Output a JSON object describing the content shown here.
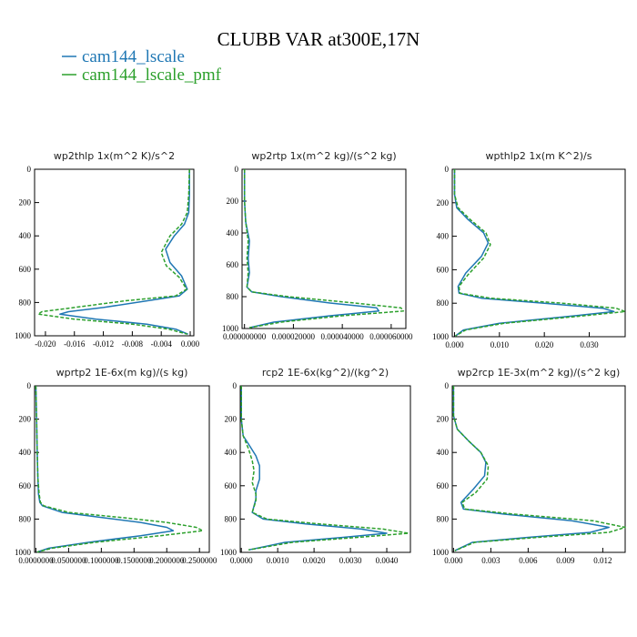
{
  "figure": {
    "title": "CLUBB VAR at300E,17N",
    "legend": [
      {
        "label": "cam144_lscale",
        "color": "#1f77b4",
        "style": "solid"
      },
      {
        "label": "cam144_lscale_pmf",
        "color": "#2ca02c",
        "style": "dashed"
      }
    ]
  },
  "chart_data": [
    {
      "type": "line",
      "title": "wp2thlp  1x(m^2 K)/s^2",
      "xlim": [
        -0.0215,
        0.0005
      ],
      "ylim": [
        1000,
        0
      ],
      "xticks": [
        -0.02,
        -0.016,
        -0.012,
        -0.008,
        -0.004,
        0.0
      ],
      "xtick_labels": [
        "-0.020",
        "-0.016",
        "-0.012",
        "-0.008",
        "-0.004",
        "0.000"
      ],
      "yticks": [
        0,
        200,
        400,
        600,
        800,
        1000
      ],
      "ytick_labels": [
        "0",
        "200",
        "400",
        "600",
        "800",
        "1000"
      ],
      "series": [
        {
          "name": "cam144_lscale",
          "color": "#1f77b4",
          "x": [
            -0.0001,
            -0.0001,
            -0.0002,
            -0.0008,
            -0.0022,
            -0.0034,
            -0.0028,
            -0.0012,
            -0.0004,
            -0.0015,
            -0.006,
            -0.012,
            -0.0168,
            -0.018,
            -0.013,
            -0.006,
            -0.002,
            -0.0003
          ],
          "y": [
            0,
            150,
            260,
            330,
            400,
            480,
            560,
            640,
            720,
            760,
            790,
            830,
            855,
            870,
            900,
            930,
            960,
            990
          ]
        },
        {
          "name": "cam144_lscale_pmf",
          "color": "#2ca02c",
          "x": [
            -0.0001,
            -0.0002,
            -0.0004,
            -0.0012,
            -0.0028,
            -0.004,
            -0.0033,
            -0.0015,
            -0.0005,
            -0.002,
            -0.009,
            -0.016,
            -0.0205,
            -0.021,
            -0.016,
            -0.008,
            -0.003,
            -0.0004
          ],
          "y": [
            0,
            150,
            260,
            330,
            400,
            500,
            580,
            650,
            720,
            760,
            790,
            830,
            855,
            870,
            900,
            930,
            960,
            990
          ]
        }
      ]
    },
    {
      "type": "line",
      "title": "wp2rtp  1x(m^2 kg)/(s^2 kg)",
      "xlim": [
        -1e-06,
        6.6e-05
      ],
      "ylim": [
        1000,
        0
      ],
      "xticks": [
        0,
        2e-05,
        4e-05,
        6e-05
      ],
      "xtick_labels": [
        "0.000000000",
        "0.000020000",
        "0.000040000",
        "0.000060000"
      ],
      "yticks": [
        0,
        200,
        400,
        600,
        800,
        1000
      ],
      "ytick_labels": [
        "0",
        "200",
        "400",
        "600",
        "800",
        "1000"
      ],
      "series": [
        {
          "name": "cam144_lscale",
          "color": "#1f77b4",
          "x": [
            0,
            0,
            5e-07,
            2e-06,
            1.5e-06,
            2e-06,
            1e-06,
            3e-06,
            1.5e-05,
            3.5e-05,
            5.4e-05,
            5.5e-05,
            3.5e-05,
            1.2e-05,
            2e-06
          ],
          "y": [
            0,
            200,
            330,
            450,
            560,
            650,
            740,
            770,
            800,
            840,
            870,
            890,
            920,
            960,
            995
          ]
        },
        {
          "name": "cam144_lscale_pmf",
          "color": "#2ca02c",
          "x": [
            0,
            0,
            5e-07,
            1.5e-06,
            1e-06,
            1.5e-06,
            1e-06,
            3e-06,
            1.8e-05,
            4.5e-05,
            6.4e-05,
            6.5e-05,
            4e-05,
            1.5e-05,
            2e-06
          ],
          "y": [
            0,
            200,
            330,
            450,
            560,
            650,
            740,
            770,
            800,
            840,
            870,
            890,
            920,
            960,
            995
          ]
        }
      ]
    },
    {
      "type": "line",
      "title": "wpthlp2  1x(m K^2)/s",
      "xlim": [
        -0.0005,
        0.038
      ],
      "ylim": [
        1000,
        0
      ],
      "xticks": [
        0,
        0.01,
        0.02,
        0.03
      ],
      "xtick_labels": [
        "0.000",
        "0.010",
        "0.020",
        "0.030"
      ],
      "yticks": [
        0,
        200,
        400,
        600,
        800,
        1000
      ],
      "ytick_labels": [
        "0",
        "200",
        "400",
        "600",
        "800",
        "1000"
      ],
      "series": [
        {
          "name": "cam144_lscale",
          "color": "#1f77b4",
          "x": [
            0,
            0,
            0.0005,
            0.003,
            0.0065,
            0.0075,
            0.006,
            0.0025,
            0.0008,
            0.001,
            0.006,
            0.02,
            0.033,
            0.0355,
            0.025,
            0.01,
            0.002,
            0.0002
          ],
          "y": [
            0,
            150,
            230,
            300,
            380,
            440,
            520,
            620,
            700,
            740,
            770,
            800,
            830,
            850,
            880,
            920,
            960,
            995
          ]
        },
        {
          "name": "cam144_lscale_pmf",
          "color": "#2ca02c",
          "x": [
            0,
            0,
            0.0008,
            0.0035,
            0.007,
            0.008,
            0.0065,
            0.003,
            0.001,
            0.0012,
            0.008,
            0.024,
            0.036,
            0.038,
            0.027,
            0.011,
            0.0025,
            0.0002
          ],
          "y": [
            0,
            150,
            230,
            300,
            380,
            450,
            530,
            630,
            700,
            740,
            770,
            800,
            830,
            850,
            880,
            920,
            960,
            995
          ]
        }
      ]
    },
    {
      "type": "line",
      "title": "wprtp2  1E-6x(m kg)/(s kg)",
      "xlim": [
        -0.002,
        0.265
      ],
      "ylim": [
        1000,
        0
      ],
      "xticks": [
        0,
        0.05,
        0.1,
        0.15,
        0.2,
        0.25
      ],
      "xtick_labels": [
        "0.0000000",
        "0.0500000",
        "0.1000000",
        "0.1500000",
        "0.2000000",
        "0.2500000"
      ],
      "yticks": [
        0,
        200,
        400,
        600,
        800,
        1000
      ],
      "ytick_labels": [
        "0",
        "200",
        "400",
        "600",
        "800",
        "1000"
      ],
      "series": [
        {
          "name": "cam144_lscale",
          "color": "#1f77b4",
          "x": [
            0,
            0.001,
            0.002,
            0.003,
            0.004,
            0.006,
            0.01,
            0.04,
            0.1,
            0.16,
            0.2,
            0.21,
            0.16,
            0.08,
            0.02,
            0.002
          ],
          "y": [
            0,
            200,
            400,
            550,
            650,
            700,
            720,
            760,
            790,
            820,
            850,
            870,
            900,
            940,
            975,
            998
          ]
        },
        {
          "name": "cam144_lscale_pmf",
          "color": "#2ca02c",
          "x": [
            0,
            0.001,
            0.002,
            0.003,
            0.005,
            0.007,
            0.012,
            0.05,
            0.13,
            0.2,
            0.245,
            0.255,
            0.19,
            0.09,
            0.025,
            0.002
          ],
          "y": [
            0,
            200,
            400,
            550,
            650,
            700,
            720,
            760,
            790,
            820,
            850,
            870,
            900,
            940,
            975,
            998
          ]
        }
      ]
    },
    {
      "type": "line",
      "title": "rcp2  1E-6x(kg^2)/(kg^2)",
      "xlim": [
        -3e-05,
        0.00465
      ],
      "ylim": [
        1000,
        0
      ],
      "xticks": [
        0,
        0.001,
        0.002,
        0.003,
        0.004
      ],
      "xtick_labels": [
        "0.0000",
        "0.0010",
        "0.0020",
        "0.0030",
        "0.0040"
      ],
      "yticks": [
        0,
        200,
        400,
        600,
        800,
        1000
      ],
      "ytick_labels": [
        "0",
        "200",
        "400",
        "600",
        "800",
        "1000"
      ],
      "series": [
        {
          "name": "cam144_lscale",
          "color": "#1f77b4",
          "x": [
            0,
            0,
            5e-05,
            0.0002,
            0.0004,
            0.0005,
            0.0005,
            0.0004,
            0.0004,
            0.0003,
            0.0006,
            0.0018,
            0.0033,
            0.004,
            0.0028,
            0.0012,
            0.0002
          ],
          "y": [
            0,
            200,
            300,
            350,
            420,
            480,
            560,
            630,
            680,
            760,
            800,
            830,
            860,
            885,
            910,
            940,
            985
          ]
        },
        {
          "name": "cam144_lscale_pmf",
          "color": "#2ca02c",
          "x": [
            0,
            0,
            5e-05,
            0.0002,
            0.0003,
            0.00035,
            0.0003,
            0.0004,
            0.0004,
            0.0003,
            0.0007,
            0.0022,
            0.0039,
            0.0046,
            0.0032,
            0.0014,
            0.0002
          ],
          "y": [
            0,
            200,
            300,
            380,
            450,
            510,
            580,
            650,
            690,
            760,
            800,
            830,
            860,
            885,
            910,
            940,
            985
          ]
        }
      ]
    },
    {
      "type": "line",
      "title": "wp2rcp  1E-3x(m^2 kg)/(s^2 kg)",
      "xlim": [
        -0.0001,
        0.0138
      ],
      "ylim": [
        1000,
        0
      ],
      "xticks": [
        0,
        0.003,
        0.006,
        0.009,
        0.012
      ],
      "xtick_labels": [
        "0.000",
        "0.003",
        "0.006",
        "0.009",
        "0.012"
      ],
      "yticks": [
        0,
        200,
        400,
        600,
        800,
        1000
      ],
      "ytick_labels": [
        "0",
        "200",
        "400",
        "600",
        "800",
        "1000"
      ],
      "series": [
        {
          "name": "cam144_lscale",
          "color": "#1f77b4",
          "x": [
            0,
            0,
            0.0003,
            0.0012,
            0.0022,
            0.0026,
            0.0025,
            0.0016,
            0.0006,
            0.0008,
            0.004,
            0.0095,
            0.0125,
            0.011,
            0.006,
            0.0015,
            0.0001
          ],
          "y": [
            0,
            180,
            260,
            330,
            400,
            460,
            540,
            620,
            700,
            740,
            770,
            810,
            850,
            880,
            910,
            940,
            990
          ]
        },
        {
          "name": "cam144_lscale_pmf",
          "color": "#2ca02c",
          "x": [
            0,
            0,
            0.0003,
            0.0012,
            0.0022,
            0.0028,
            0.0027,
            0.0018,
            0.0007,
            0.0009,
            0.0048,
            0.0112,
            0.0138,
            0.0125,
            0.0068,
            0.0017,
            0.0001
          ],
          "y": [
            0,
            180,
            260,
            330,
            400,
            480,
            560,
            640,
            700,
            740,
            770,
            810,
            850,
            880,
            910,
            940,
            990
          ]
        }
      ]
    }
  ]
}
